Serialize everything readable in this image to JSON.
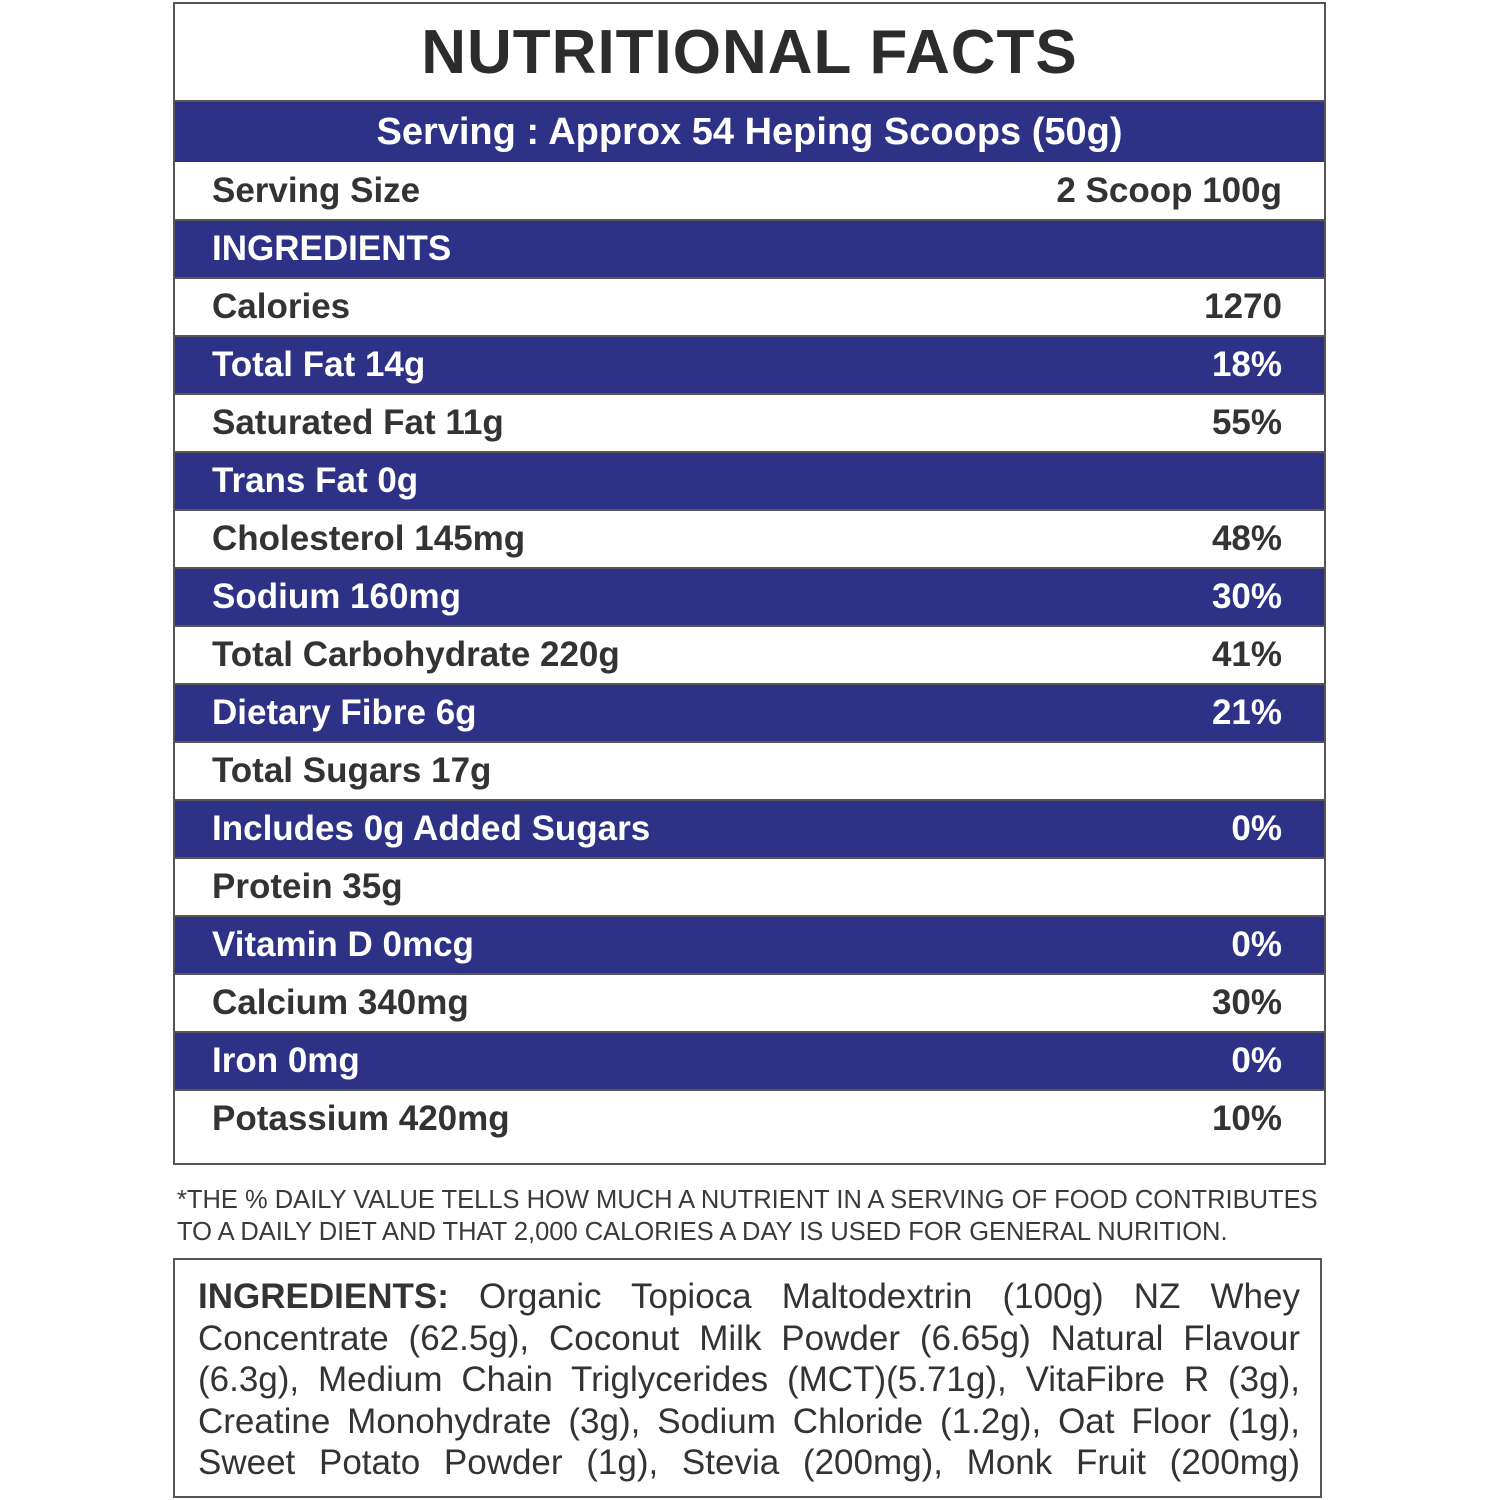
{
  "title": "NUTRITIONAL FACTS",
  "serving_banner": "Serving : Approx 54 Heping Scoops (50g)",
  "rows": [
    {
      "label": "Serving Size",
      "value": "2 Scoop 100g",
      "style": "light"
    },
    {
      "label": "INGREDIENTS",
      "value": "",
      "style": "dark"
    },
    {
      "label": "Calories",
      "value": "1270",
      "style": "light"
    },
    {
      "label": "Total Fat 14g",
      "value": "18%",
      "style": "dark"
    },
    {
      "label": "Saturated Fat 11g",
      "value": "55%",
      "style": "light"
    },
    {
      "label": "Trans Fat 0g",
      "value": "",
      "style": "dark"
    },
    {
      "label": "Cholesterol 145mg",
      "value": "48%",
      "style": "light"
    },
    {
      "label": "Sodium 160mg",
      "value": "30%",
      "style": "dark"
    },
    {
      "label": "Total Carbohydrate 220g",
      "value": "41%",
      "style": "light"
    },
    {
      "label": "Dietary Fibre 6g",
      "value": "21%",
      "style": "dark"
    },
    {
      "label": "Total Sugars 17g",
      "value": "",
      "style": "light"
    },
    {
      "label": "Includes 0g Added Sugars",
      "value": "0%",
      "style": "dark"
    },
    {
      "label": "Protein 35g",
      "value": "",
      "style": "light"
    },
    {
      "label": "Vitamin D 0mcg",
      "value": "0%",
      "style": "dark"
    },
    {
      "label": "Calcium 340mg",
      "value": "30%",
      "style": "light"
    },
    {
      "label": "Iron 0mg",
      "value": "0%",
      "style": "dark"
    },
    {
      "label": "Potassium 420mg",
      "value": "10%",
      "style": "light"
    }
  ],
  "footnote": {
    "line1": "*THE % DAILY VALUE TELLS HOW MUCH A NUTRIENT IN A SERVING OF FOOD CONTRIBUTES",
    "line2": "TO A DAILY DIET AND THAT 2,000 CALORIES A DAY IS USED FOR GENERAL NURITION."
  },
  "ingredients": {
    "label": "INGREDIENTS:",
    "text": "Organic Topioca Maltodextrin (100g) NZ Whey Concentrate (62.5g), Coconut Milk Powder (6.65g) Natural Flavour (6.3g), Medium Chain Triglycerides (MCT)(5.71g), VitaFibre R (3g), Creatine Monohydrate (3g), Sodium Chloride (1.2g), Oat Floor (1g), Sweet Potato Powder (1g), Stevia (200mg), Monk Fruit (200mg)"
  },
  "colors": {
    "navy": "#2e3287",
    "text": "#333333"
  }
}
